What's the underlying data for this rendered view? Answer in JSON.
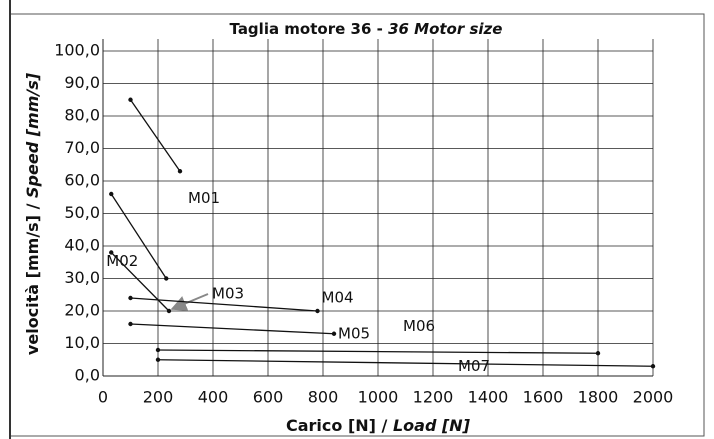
{
  "chart_data": {
    "type": "line",
    "title": [
      "Taglia motore 36 -",
      "36 Motor size"
    ],
    "x_label": [
      "Carico [N] /",
      "Load [N]"
    ],
    "y_label": [
      "velocità [mm/s] /",
      "Speed [mm/s]"
    ],
    "xlim": [
      0,
      2000
    ],
    "ylim": [
      0,
      100
    ],
    "xticks": [
      0,
      200,
      400,
      600,
      800,
      1000,
      1200,
      1400,
      1600,
      1800,
      2000
    ],
    "yticks": [
      {
        "value": 0,
        "label": "0,0"
      },
      {
        "value": 10,
        "label": "10,0"
      },
      {
        "value": 20,
        "label": "20,0"
      },
      {
        "value": 30,
        "label": "30,0"
      },
      {
        "value": 40,
        "label": "40,0"
      },
      {
        "value": 50,
        "label": "50,0"
      },
      {
        "value": 60,
        "label": "60,0"
      },
      {
        "value": 70,
        "label": "70,0"
      },
      {
        "value": 80,
        "label": "80,0"
      },
      {
        "value": 90,
        "label": "90,0"
      },
      {
        "value": 100,
        "label": "100,0"
      }
    ],
    "grid": true,
    "series": [
      {
        "name": "M01",
        "color": "#111111",
        "x": [
          100,
          280
        ],
        "values": [
          85,
          63
        ]
      },
      {
        "name": "M02",
        "color": "#111111",
        "x": [
          30,
          230
        ],
        "values": [
          56,
          30
        ]
      },
      {
        "name": "M03",
        "color": "#111111",
        "x": [
          30,
          240
        ],
        "values": [
          38,
          20
        ]
      },
      {
        "name": "M04",
        "color": "#111111",
        "x": [
          100,
          780
        ],
        "values": [
          24,
          20
        ]
      },
      {
        "name": "M05",
        "color": "#111111",
        "x": [
          100,
          840
        ],
        "values": [
          16,
          13
        ]
      },
      {
        "name": "M06",
        "color": "#111111",
        "x": [
          200,
          1800
        ],
        "values": [
          8,
          7
        ]
      },
      {
        "name": "M07",
        "color": "#111111",
        "x": [
          200,
          2000
        ],
        "values": [
          5,
          3
        ]
      }
    ]
  }
}
